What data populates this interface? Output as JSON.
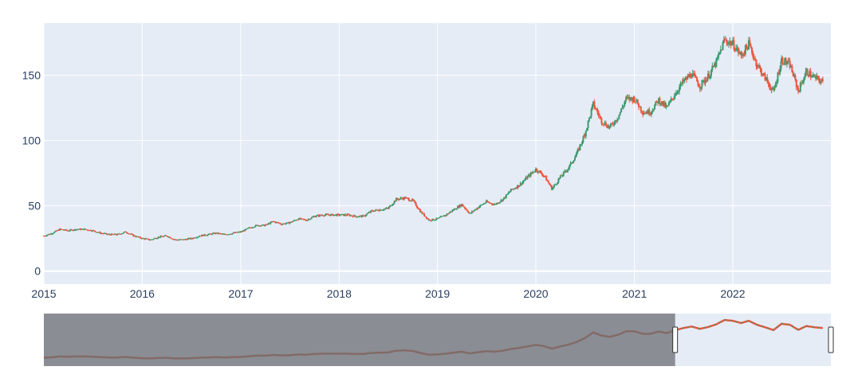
{
  "chart_data": {
    "type": "candlestick",
    "title": "",
    "xlabel": "",
    "ylabel": "",
    "x_range": [
      "2015-01-01",
      "2022-12-31"
    ],
    "ylim": [
      -10,
      190
    ],
    "x_ticks": [
      "2015",
      "2016",
      "2017",
      "2018",
      "2019",
      "2020",
      "2021",
      "2022"
    ],
    "y_ticks": [
      0,
      50,
      100,
      150
    ],
    "grid": true,
    "legend": "none",
    "colors": {
      "increasing": "#3d9970",
      "decreasing": "#ef553b",
      "plot_background": "#e5ecf6",
      "grid": "#ffffff",
      "rangeslider_mask": "#6b6e73"
    },
    "rangeslider": {
      "visible": true,
      "selected_range": [
        "2015-01-01",
        "2021-06-01"
      ]
    },
    "close_series": [
      [
        "2015-01-01",
        27
      ],
      [
        "2015-02-01",
        29
      ],
      [
        "2015-03-01",
        32
      ],
      [
        "2015-04-01",
        31
      ],
      [
        "2015-05-01",
        32
      ],
      [
        "2015-06-01",
        32
      ],
      [
        "2015-07-01",
        31
      ],
      [
        "2015-08-01",
        29
      ],
      [
        "2015-09-01",
        28
      ],
      [
        "2015-10-01",
        28
      ],
      [
        "2015-11-01",
        30
      ],
      [
        "2015-12-01",
        27
      ],
      [
        "2016-01-01",
        25
      ],
      [
        "2016-02-01",
        24
      ],
      [
        "2016-03-01",
        26
      ],
      [
        "2016-04-01",
        27
      ],
      [
        "2016-05-01",
        24
      ],
      [
        "2016-06-01",
        24
      ],
      [
        "2016-07-01",
        25
      ],
      [
        "2016-08-01",
        27
      ],
      [
        "2016-09-01",
        28
      ],
      [
        "2016-10-01",
        29
      ],
      [
        "2016-11-01",
        28
      ],
      [
        "2016-12-01",
        29
      ],
      [
        "2017-01-01",
        30
      ],
      [
        "2017-02-01",
        33
      ],
      [
        "2017-03-01",
        35
      ],
      [
        "2017-04-01",
        35
      ],
      [
        "2017-05-01",
        38
      ],
      [
        "2017-06-01",
        36
      ],
      [
        "2017-07-01",
        37
      ],
      [
        "2017-08-01",
        40
      ],
      [
        "2017-09-01",
        39
      ],
      [
        "2017-10-01",
        42
      ],
      [
        "2017-11-01",
        43
      ],
      [
        "2017-12-01",
        43
      ],
      [
        "2018-01-01",
        43
      ],
      [
        "2018-02-01",
        43
      ],
      [
        "2018-03-01",
        42
      ],
      [
        "2018-04-01",
        42
      ],
      [
        "2018-05-01",
        46
      ],
      [
        "2018-06-01",
        47
      ],
      [
        "2018-07-01",
        48
      ],
      [
        "2018-08-01",
        55
      ],
      [
        "2018-09-01",
        56
      ],
      [
        "2018-10-01",
        54
      ],
      [
        "2018-11-01",
        45
      ],
      [
        "2018-12-01",
        39
      ],
      [
        "2019-01-01",
        40
      ],
      [
        "2019-02-01",
        43
      ],
      [
        "2019-03-01",
        47
      ],
      [
        "2019-04-01",
        51
      ],
      [
        "2019-05-01",
        44
      ],
      [
        "2019-06-01",
        49
      ],
      [
        "2019-07-01",
        53
      ],
      [
        "2019-08-01",
        51
      ],
      [
        "2019-09-01",
        55
      ],
      [
        "2019-10-01",
        62
      ],
      [
        "2019-11-01",
        66
      ],
      [
        "2019-12-01",
        72
      ],
      [
        "2020-01-01",
        78
      ],
      [
        "2020-02-01",
        73
      ],
      [
        "2020-03-01",
        63
      ],
      [
        "2020-04-01",
        72
      ],
      [
        "2020-05-01",
        79
      ],
      [
        "2020-06-01",
        90
      ],
      [
        "2020-07-01",
        105
      ],
      [
        "2020-08-01",
        128
      ],
      [
        "2020-09-01",
        115
      ],
      [
        "2020-10-01",
        110
      ],
      [
        "2020-11-01",
        118
      ],
      [
        "2020-12-01",
        132
      ],
      [
        "2021-01-01",
        132
      ],
      [
        "2021-02-01",
        122
      ],
      [
        "2021-03-01",
        122
      ],
      [
        "2021-04-01",
        131
      ],
      [
        "2021-05-01",
        125
      ],
      [
        "2021-06-01",
        136
      ],
      [
        "2021-07-01",
        145
      ],
      [
        "2021-08-01",
        151
      ],
      [
        "2021-09-01",
        142
      ],
      [
        "2021-10-01",
        149
      ],
      [
        "2021-11-01",
        160
      ],
      [
        "2021-12-01",
        177
      ],
      [
        "2022-01-01",
        174
      ],
      [
        "2022-02-01",
        165
      ],
      [
        "2022-03-01",
        174
      ],
      [
        "2022-04-01",
        158
      ],
      [
        "2022-05-01",
        148
      ],
      [
        "2022-06-01",
        137
      ],
      [
        "2022-07-01",
        162
      ],
      [
        "2022-08-01",
        158
      ],
      [
        "2022-09-01",
        138
      ],
      [
        "2022-10-01",
        153
      ],
      [
        "2022-11-01",
        148
      ],
      [
        "2022-12-01",
        145
      ]
    ]
  }
}
